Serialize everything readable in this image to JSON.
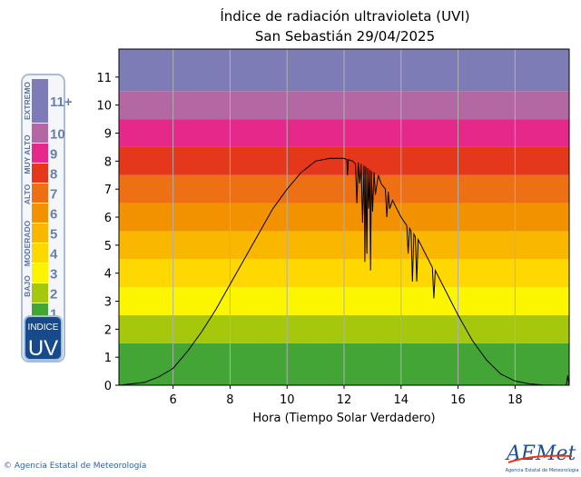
{
  "chart_data": {
    "type": "line",
    "title": "Índice de radiación ultravioleta (UVI)",
    "subtitle": "San Sebastián 29/04/2025",
    "xlabel": "Hora (Tiempo Solar Verdadero)",
    "ylabel": "",
    "xlim": [
      4.1,
      19.9
    ],
    "ylim": [
      0,
      12
    ],
    "xticks": [
      6,
      8,
      10,
      12,
      14,
      16,
      18
    ],
    "yticks": [
      0,
      1,
      2,
      3,
      4,
      5,
      6,
      7,
      8,
      9,
      10,
      11
    ],
    "grid": "vertical",
    "bands": [
      {
        "from": 0,
        "to": 1.5,
        "color": "#42a535"
      },
      {
        "from": 1.5,
        "to": 2.5,
        "color": "#a5c80c"
      },
      {
        "from": 2.5,
        "to": 3.5,
        "color": "#fbf500"
      },
      {
        "from": 3.5,
        "to": 4.5,
        "color": "#fed800"
      },
      {
        "from": 4.5,
        "to": 5.5,
        "color": "#f9b700"
      },
      {
        "from": 5.5,
        "to": 6.5,
        "color": "#f39200"
      },
      {
        "from": 6.5,
        "to": 7.5,
        "color": "#ee7015"
      },
      {
        "from": 7.5,
        "to": 8.5,
        "color": "#e5371b"
      },
      {
        "from": 8.5,
        "to": 9.5,
        "color": "#e5288a"
      },
      {
        "from": 9.5,
        "to": 10.5,
        "color": "#b468a3"
      },
      {
        "from": 10.5,
        "to": 12,
        "color": "#7e7cb6"
      }
    ],
    "series": [
      {
        "color": "#000000",
        "x": [
          4.1,
          5.0,
          5.5,
          6.0,
          6.5,
          7.0,
          7.5,
          8.0,
          8.5,
          9.0,
          9.5,
          10.0,
          10.5,
          11.0,
          11.5,
          11.8,
          12.0,
          12.1,
          12.12,
          12.15,
          12.3,
          12.4,
          12.45,
          12.5,
          12.55,
          12.6,
          12.65,
          12.7,
          12.73,
          12.76,
          12.8,
          12.83,
          12.86,
          12.9,
          12.93,
          12.96,
          13.0,
          13.05,
          13.1,
          13.2,
          13.3,
          13.45,
          13.5,
          13.55,
          13.6,
          13.7,
          13.8,
          14.0,
          14.2,
          14.25,
          14.3,
          14.35,
          14.4,
          14.45,
          14.5,
          14.55,
          14.6,
          14.7,
          14.8,
          15.0,
          15.1,
          15.15,
          15.2,
          15.3,
          15.5,
          16.0,
          16.5,
          17.0,
          17.5,
          18.0,
          18.5,
          19.0,
          19.5,
          19.8,
          19.85,
          19.9
        ],
        "y": [
          0,
          0.1,
          0.3,
          0.6,
          1.2,
          1.9,
          2.7,
          3.6,
          4.5,
          5.4,
          6.3,
          7.0,
          7.6,
          8.0,
          8.1,
          8.1,
          8.1,
          8.05,
          7.5,
          8.05,
          8.0,
          7.9,
          6.5,
          7.95,
          7.2,
          7.9,
          5.8,
          7.85,
          4.4,
          7.8,
          4.7,
          7.75,
          6.3,
          7.7,
          4.1,
          7.65,
          6.2,
          7.6,
          6.8,
          7.5,
          7.2,
          7.0,
          6.0,
          6.9,
          6.3,
          6.6,
          6.4,
          6.0,
          5.7,
          4.7,
          5.6,
          5.5,
          3.7,
          5.4,
          5.3,
          3.7,
          5.2,
          5.0,
          4.8,
          4.4,
          4.2,
          3.1,
          4.1,
          3.9,
          3.5,
          2.5,
          1.6,
          0.9,
          0.4,
          0.15,
          0.05,
          0.01,
          0,
          0,
          0.35,
          0
        ]
      }
    ],
    "legend": {
      "numbers": [
        "11+",
        "10",
        "9",
        "8",
        "7",
        "6",
        "5",
        "4",
        "3",
        "2",
        "1"
      ],
      "levels": [
        "EXTREMO",
        "MUY ALTO",
        "ALTO",
        "MODERADO",
        "BAJO"
      ],
      "badge_top": "INDICE",
      "badge_bottom": "UV"
    }
  },
  "footer": {
    "copyright": "© Agencia Estatal de Meteorología",
    "logo_text": "AEMet",
    "logo_subtext": "Agencia Estatal de Meteorología"
  }
}
